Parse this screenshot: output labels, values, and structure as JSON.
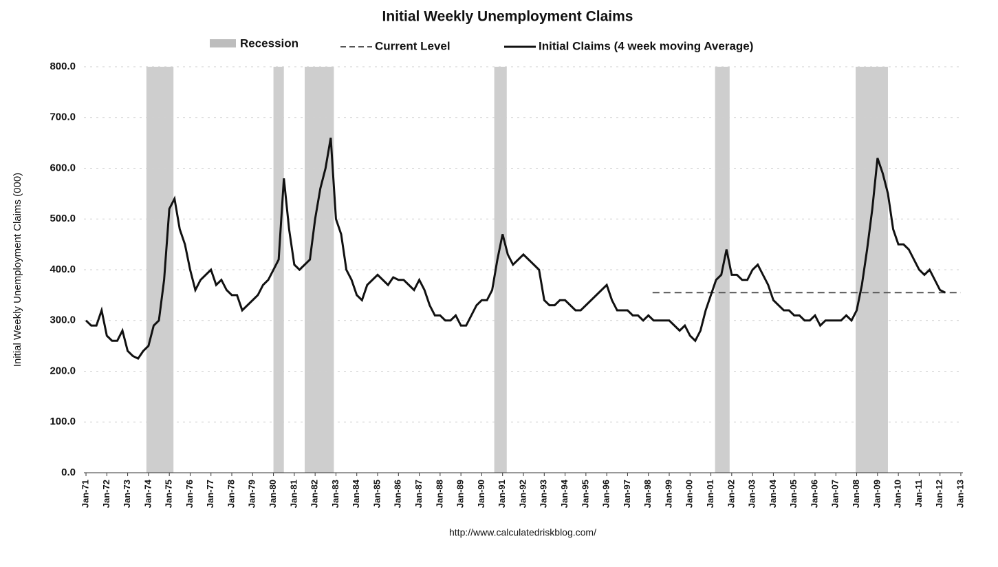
{
  "chart_data": {
    "type": "line",
    "title": "Initial Weekly Unemployment Claims",
    "y_label": "Initial Weekly Unemployment Claims (000)",
    "source": "http://www.calculatedriskblog.com/",
    "recession_label": "Recession",
    "recession_color": "#bdbdbd",
    "recessions": [
      [
        1973.9,
        1975.2
      ],
      [
        1980.0,
        1980.5
      ],
      [
        1981.5,
        1982.9
      ],
      [
        1990.6,
        1991.2
      ],
      [
        2001.2,
        2001.9
      ],
      [
        2007.95,
        2009.5
      ]
    ],
    "xlim": [
      1970.9,
      2013.1
    ],
    "ylim": [
      0,
      800
    ],
    "grid": true,
    "yticks": [
      {
        "value": 0,
        "label": "0.0"
      },
      {
        "value": 100,
        "label": "100.0"
      },
      {
        "value": 200,
        "label": "200.0"
      },
      {
        "value": 300,
        "label": "300.0"
      },
      {
        "value": 400,
        "label": "400.0"
      },
      {
        "value": 500,
        "label": "500.0"
      },
      {
        "value": 600,
        "label": "600.0"
      },
      {
        "value": 700,
        "label": "700.0"
      },
      {
        "value": 800,
        "label": "800.0"
      }
    ],
    "xticks": [
      {
        "value": 1971,
        "label": "Jan-71"
      },
      {
        "value": 1972,
        "label": "Jan-72"
      },
      {
        "value": 1973,
        "label": "Jan-73"
      },
      {
        "value": 1974,
        "label": "Jan-74"
      },
      {
        "value": 1975,
        "label": "Jan-75"
      },
      {
        "value": 1976,
        "label": "Jan-76"
      },
      {
        "value": 1977,
        "label": "Jan-77"
      },
      {
        "value": 1978,
        "label": "Jan-78"
      },
      {
        "value": 1979,
        "label": "Jan-79"
      },
      {
        "value": 1980,
        "label": "Jan-80"
      },
      {
        "value": 1981,
        "label": "Jan-81"
      },
      {
        "value": 1982,
        "label": "Jan-82"
      },
      {
        "value": 1983,
        "label": "Jan-83"
      },
      {
        "value": 1984,
        "label": "Jan-84"
      },
      {
        "value": 1985,
        "label": "Jan-85"
      },
      {
        "value": 1986,
        "label": "Jan-86"
      },
      {
        "value": 1987,
        "label": "Jan-87"
      },
      {
        "value": 1988,
        "label": "Jan-88"
      },
      {
        "value": 1989,
        "label": "Jan-89"
      },
      {
        "value": 1990,
        "label": "Jan-90"
      },
      {
        "value": 1991,
        "label": "Jan-91"
      },
      {
        "value": 1992,
        "label": "Jan-92"
      },
      {
        "value": 1993,
        "label": "Jan-93"
      },
      {
        "value": 1994,
        "label": "Jan-94"
      },
      {
        "value": 1995,
        "label": "Jan-95"
      },
      {
        "value": 1996,
        "label": "Jan-96"
      },
      {
        "value": 1997,
        "label": "Jan-97"
      },
      {
        "value": 1998,
        "label": "Jan-98"
      },
      {
        "value": 1999,
        "label": "Jan-99"
      },
      {
        "value": 2000,
        "label": "Jan-00"
      },
      {
        "value": 2001,
        "label": "Jan-01"
      },
      {
        "value": 2002,
        "label": "Jan-02"
      },
      {
        "value": 2003,
        "label": "Jan-03"
      },
      {
        "value": 2004,
        "label": "Jan-04"
      },
      {
        "value": 2005,
        "label": "Jan-05"
      },
      {
        "value": 2006,
        "label": "Jan-06"
      },
      {
        "value": 2007,
        "label": "Jan-07"
      },
      {
        "value": 2008,
        "label": "Jan-08"
      },
      {
        "value": 2009,
        "label": "Jan-09"
      },
      {
        "value": 2010,
        "label": "Jan-10"
      },
      {
        "value": 2011,
        "label": "Jan-11"
      },
      {
        "value": 2012,
        "label": "Jan-12"
      },
      {
        "value": 2013,
        "label": "Jan-13"
      }
    ],
    "series": [
      {
        "name": "Current Level",
        "color": "#555555",
        "dashed": true,
        "x": [
          1998.2,
          2013
        ],
        "values": [
          355,
          355
        ]
      },
      {
        "name": "Initial Claims (4 week moving Average)",
        "color": "#111111",
        "dashed": false,
        "x": [
          1971,
          1971.25,
          1971.5,
          1971.75,
          1972,
          1972.25,
          1972.5,
          1972.75,
          1973,
          1973.25,
          1973.5,
          1973.75,
          1974,
          1974.25,
          1974.5,
          1974.75,
          1975,
          1975.25,
          1975.5,
          1975.75,
          1976,
          1976.25,
          1976.5,
          1976.75,
          1977,
          1977.25,
          1977.5,
          1977.75,
          1978,
          1978.25,
          1978.5,
          1978.75,
          1979,
          1979.25,
          1979.5,
          1979.75,
          1980,
          1980.25,
          1980.5,
          1980.75,
          1981,
          1981.25,
          1981.5,
          1981.75,
          1982,
          1982.25,
          1982.5,
          1982.75,
          1983,
          1983.25,
          1983.5,
          1983.75,
          1984,
          1984.25,
          1984.5,
          1984.75,
          1985,
          1985.25,
          1985.5,
          1985.75,
          1986,
          1986.25,
          1986.5,
          1986.75,
          1987,
          1987.25,
          1987.5,
          1987.75,
          1988,
          1988.25,
          1988.5,
          1988.75,
          1989,
          1989.25,
          1989.5,
          1989.75,
          1990,
          1990.25,
          1990.5,
          1990.75,
          1991,
          1991.25,
          1991.5,
          1991.75,
          1992,
          1992.25,
          1992.5,
          1992.75,
          1993,
          1993.25,
          1993.5,
          1993.75,
          1994,
          1994.25,
          1994.5,
          1994.75,
          1995,
          1995.25,
          1995.5,
          1995.75,
          1996,
          1996.25,
          1996.5,
          1996.75,
          1997,
          1997.25,
          1997.5,
          1997.75,
          1998,
          1998.25,
          1998.5,
          1998.75,
          1999,
          1999.25,
          1999.5,
          1999.75,
          2000,
          2000.25,
          2000.5,
          2000.75,
          2001,
          2001.25,
          2001.5,
          2001.75,
          2002,
          2002.25,
          2002.5,
          2002.75,
          2003,
          2003.25,
          2003.5,
          2003.75,
          2004,
          2004.25,
          2004.5,
          2004.75,
          2005,
          2005.25,
          2005.5,
          2005.75,
          2006,
          2006.25,
          2006.5,
          2006.75,
          2007,
          2007.25,
          2007.5,
          2007.75,
          2008,
          2008.25,
          2008.5,
          2008.75,
          2009,
          2009.25,
          2009.5,
          2009.75,
          2010,
          2010.25,
          2010.5,
          2010.75,
          2011,
          2011.25,
          2011.5,
          2011.75,
          2012,
          2012.25
        ],
        "values": [
          300,
          290,
          290,
          320,
          270,
          260,
          260,
          280,
          240,
          230,
          225,
          240,
          250,
          290,
          300,
          380,
          520,
          540,
          480,
          450,
          400,
          360,
          380,
          390,
          400,
          370,
          380,
          360,
          350,
          350,
          320,
          330,
          340,
          350,
          370,
          380,
          400,
          420,
          580,
          480,
          410,
          400,
          410,
          420,
          500,
          560,
          600,
          660,
          500,
          470,
          400,
          380,
          350,
          340,
          370,
          380,
          390,
          380,
          370,
          385,
          380,
          380,
          370,
          360,
          380,
          360,
          330,
          310,
          310,
          300,
          300,
          310,
          290,
          290,
          310,
          330,
          340,
          340,
          360,
          420,
          470,
          430,
          410,
          420,
          430,
          420,
          410,
          400,
          340,
          330,
          330,
          340,
          340,
          330,
          320,
          320,
          330,
          340,
          350,
          360,
          370,
          340,
          320,
          320,
          320,
          310,
          310,
          300,
          310,
          300,
          300,
          300,
          300,
          290,
          280,
          290,
          270,
          260,
          280,
          320,
          350,
          380,
          390,
          440,
          390,
          390,
          380,
          380,
          400,
          410,
          390,
          370,
          340,
          330,
          320,
          320,
          310,
          310,
          300,
          300,
          310,
          290,
          300,
          300,
          300,
          300,
          310,
          300,
          320,
          370,
          440,
          520,
          620,
          590,
          550,
          480,
          450,
          450,
          440,
          420,
          400,
          390,
          400,
          380,
          360,
          355
        ]
      }
    ]
  }
}
